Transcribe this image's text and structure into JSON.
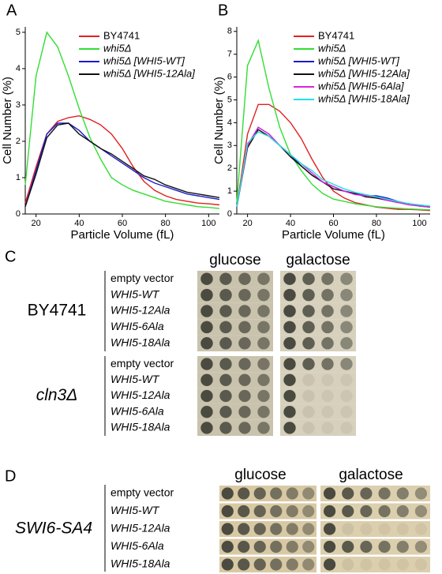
{
  "chart_data": [
    {
      "type": "line",
      "panel": "A",
      "x_label": "Particle Volume (fL)",
      "y_label": "Cell Number (%)",
      "x": [
        15,
        20,
        25,
        30,
        35,
        40,
        45,
        50,
        55,
        60,
        65,
        70,
        75,
        80,
        85,
        90,
        95,
        100,
        105
      ],
      "xlim": [
        15,
        105
      ],
      "xticks": [
        20,
        40,
        60,
        80,
        100
      ],
      "ylim": [
        0,
        5.15
      ],
      "yticks": [
        0,
        1,
        2,
        3,
        4,
        5
      ],
      "series": [
        {
          "name": "BY4741",
          "color": "#e02020",
          "values": [
            0.3,
            1.3,
            2.2,
            2.55,
            2.65,
            2.7,
            2.6,
            2.45,
            2.2,
            1.8,
            1.3,
            0.9,
            0.65,
            0.5,
            0.4,
            0.35,
            0.3,
            0.28,
            0.25
          ]
        },
        {
          "name": "whi5Δ",
          "color": "#33dd33",
          "values": [
            0.8,
            3.8,
            5.0,
            4.6,
            3.8,
            2.9,
            2.1,
            1.5,
            1.0,
            0.8,
            0.65,
            0.55,
            0.45,
            0.35,
            0.3,
            0.25,
            0.2,
            0.18,
            0.15
          ]
        },
        {
          "name": "whi5Δ [WHI5-WT]",
          "color": "#1a1acc",
          "values": [
            0.2,
            1.2,
            2.2,
            2.5,
            2.5,
            2.3,
            2.0,
            1.8,
            1.6,
            1.4,
            1.2,
            1.0,
            0.85,
            0.75,
            0.65,
            0.55,
            0.5,
            0.45,
            0.4
          ]
        },
        {
          "name": "whi5Δ [WHI5-12Ala]",
          "color": "#111111",
          "values": [
            0.2,
            1.1,
            2.1,
            2.45,
            2.5,
            2.2,
            2.0,
            1.8,
            1.65,
            1.45,
            1.25,
            1.05,
            0.95,
            0.8,
            0.7,
            0.6,
            0.55,
            0.5,
            0.45
          ]
        }
      ]
    },
    {
      "type": "line",
      "panel": "B",
      "x_label": "Particle Volume (fL)",
      "y_label": "Cell Number (%)",
      "x": [
        15,
        20,
        25,
        30,
        35,
        40,
        45,
        50,
        55,
        60,
        65,
        70,
        75,
        80,
        85,
        90,
        95,
        100,
        105
      ],
      "xlim": [
        15,
        105
      ],
      "xticks": [
        20,
        40,
        60,
        80,
        100
      ],
      "ylim": [
        0,
        8.2
      ],
      "yticks": [
        0,
        1,
        2,
        3,
        4,
        5,
        6,
        7,
        8
      ],
      "series": [
        {
          "name": "BY4741",
          "color": "#e02020",
          "values": [
            0.3,
            3.5,
            4.8,
            4.8,
            4.5,
            4.0,
            3.3,
            2.4,
            1.6,
            1.0,
            0.7,
            0.5,
            0.4,
            0.3,
            0.25,
            0.2,
            0.2,
            0.18,
            0.15
          ]
        },
        {
          "name": "whi5Δ",
          "color": "#33dd33",
          "values": [
            0.5,
            6.5,
            7.6,
            5.5,
            3.8,
            2.6,
            1.9,
            1.3,
            0.9,
            0.65,
            0.55,
            0.45,
            0.38,
            0.32,
            0.28,
            0.25,
            0.22,
            0.2,
            0.18
          ]
        },
        {
          "name": "whi5Δ [WHI5-WT]",
          "color": "#1a1acc",
          "values": [
            0.3,
            3.0,
            3.8,
            3.5,
            3.0,
            2.6,
            2.1,
            1.7,
            1.4,
            1.2,
            1.0,
            0.9,
            0.8,
            0.8,
            0.7,
            0.55,
            0.45,
            0.35,
            0.3
          ]
        },
        {
          "name": "whi5Δ [WHI5-12Ala]",
          "color": "#111111",
          "values": [
            0.3,
            2.9,
            3.7,
            3.4,
            3.0,
            2.5,
            2.1,
            1.7,
            1.4,
            1.1,
            1.0,
            0.9,
            0.75,
            0.7,
            0.6,
            0.5,
            0.45,
            0.35,
            0.3
          ]
        },
        {
          "name": "whi5Δ [WHI5-6Ala]",
          "color": "#dd22dd",
          "values": [
            0.3,
            3.0,
            3.8,
            3.5,
            3.0,
            2.6,
            2.2,
            1.8,
            1.4,
            1.2,
            1.0,
            0.85,
            0.8,
            0.75,
            0.6,
            0.5,
            0.4,
            0.35,
            0.3
          ]
        },
        {
          "name": "whi5Δ [WHI5-18Ala]",
          "color": "#22e0e0",
          "values": [
            0.3,
            3.1,
            3.6,
            3.4,
            3.0,
            2.6,
            2.2,
            1.9,
            1.5,
            1.3,
            1.1,
            0.95,
            0.85,
            0.75,
            0.65,
            0.55,
            0.45,
            0.4,
            0.35
          ]
        }
      ]
    }
  ],
  "panel_c": {
    "panel": "C",
    "conditions": [
      "glucose",
      "galactose"
    ],
    "groups": [
      {
        "strain": "BY4741",
        "rows": [
          "empty vector",
          "WHI5-WT",
          "WHI5-12Ala",
          "WHI5-6Ala",
          "WHI5-18Ala"
        ]
      },
      {
        "strain": "cln3Δ",
        "rows": [
          "empty vector",
          "WHI5-WT",
          "WHI5-12Ala",
          "WHI5-6Ala",
          "WHI5-18Ala"
        ]
      }
    ]
  },
  "panel_d": {
    "panel": "D",
    "conditions": [
      "glucose",
      "galactose"
    ],
    "groups": [
      {
        "strain": "SWI6-SA4",
        "rows": [
          "empty vector",
          "WHI5-WT",
          "WHI5-12Ala",
          "WHI5-6Ala",
          "WHI5-18Ala"
        ]
      }
    ]
  }
}
